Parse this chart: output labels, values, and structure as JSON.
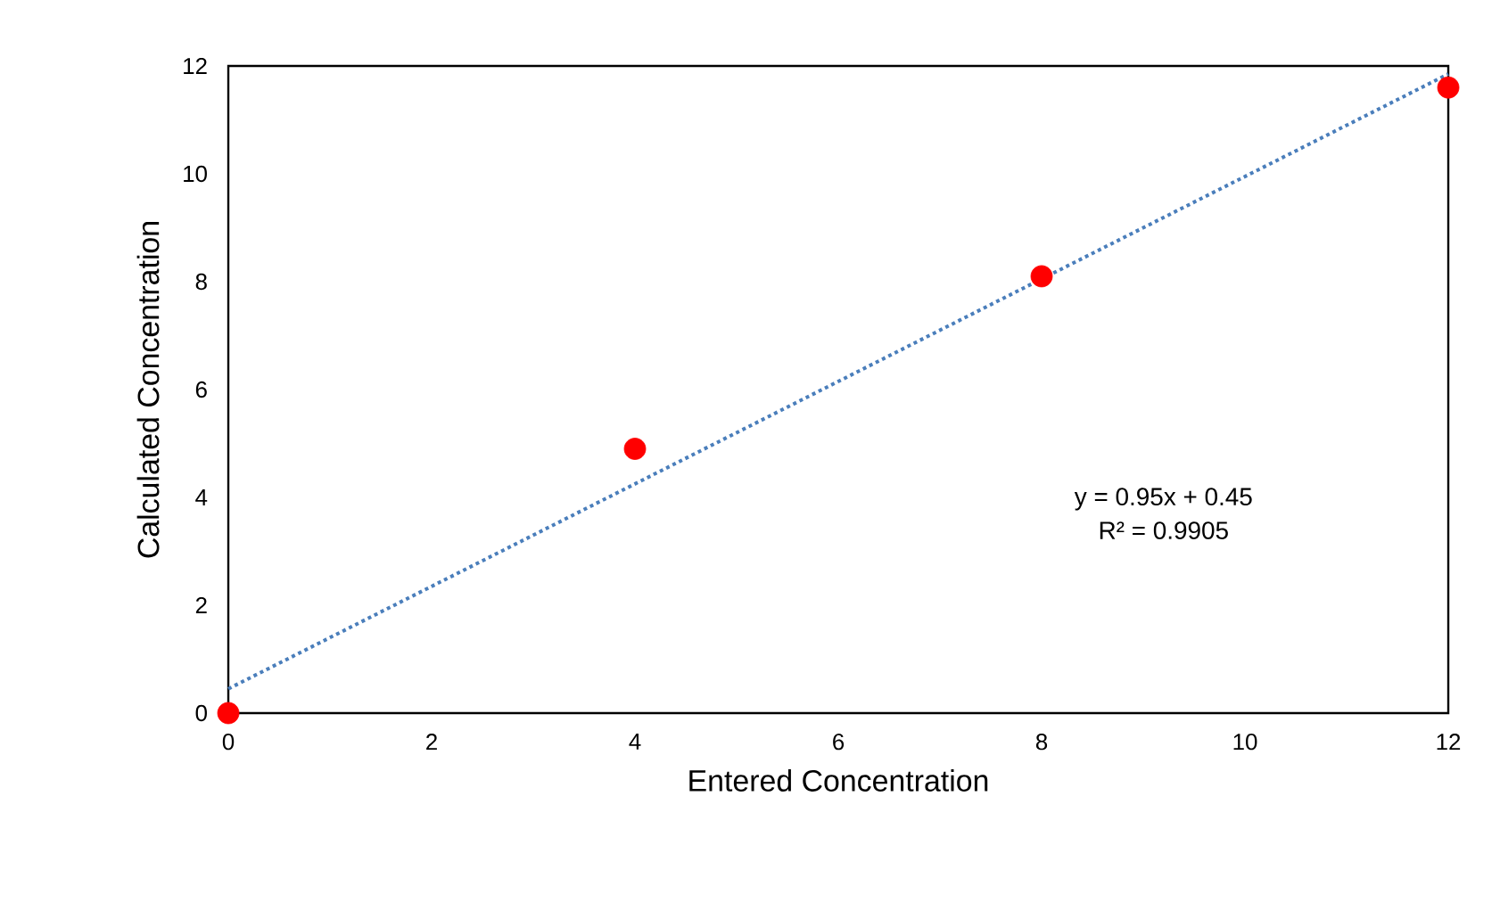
{
  "chart_data": {
    "type": "scatter",
    "xlabel": "Entered Concentration",
    "ylabel": "Calculated Concentration",
    "xlim": [
      0,
      12
    ],
    "ylim": [
      0,
      12
    ],
    "xticks": [
      0,
      2,
      4,
      6,
      8,
      10,
      12
    ],
    "yticks": [
      0,
      2,
      4,
      6,
      8,
      10,
      12
    ],
    "grid": false,
    "series": [
      {
        "type": "scatter",
        "color": "#ff0000",
        "marker": "circle",
        "x": [
          0,
          4,
          8,
          12
        ],
        "values": [
          0,
          4.9,
          8.1,
          11.6
        ]
      },
      {
        "type": "line",
        "color": "#4a7ebb",
        "line_style": "dotted",
        "marker": "none",
        "x": [
          0,
          12
        ],
        "values": [
          0.45,
          11.85
        ]
      }
    ],
    "annotations": [
      "y = 0.95x + 0.45",
      "R² = 0.9905"
    ]
  }
}
